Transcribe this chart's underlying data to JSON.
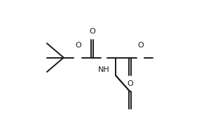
{
  "bg_color": "#ffffff",
  "line_color": "#1a1a1a",
  "lw": 1.4,
  "dbo": 0.008,
  "figsize": [
    2.84,
    1.72
  ],
  "dpi": 100,
  "xlim": [
    0.0,
    1.0
  ],
  "ylim": [
    0.0,
    1.0
  ],
  "font_size": 8.0
}
